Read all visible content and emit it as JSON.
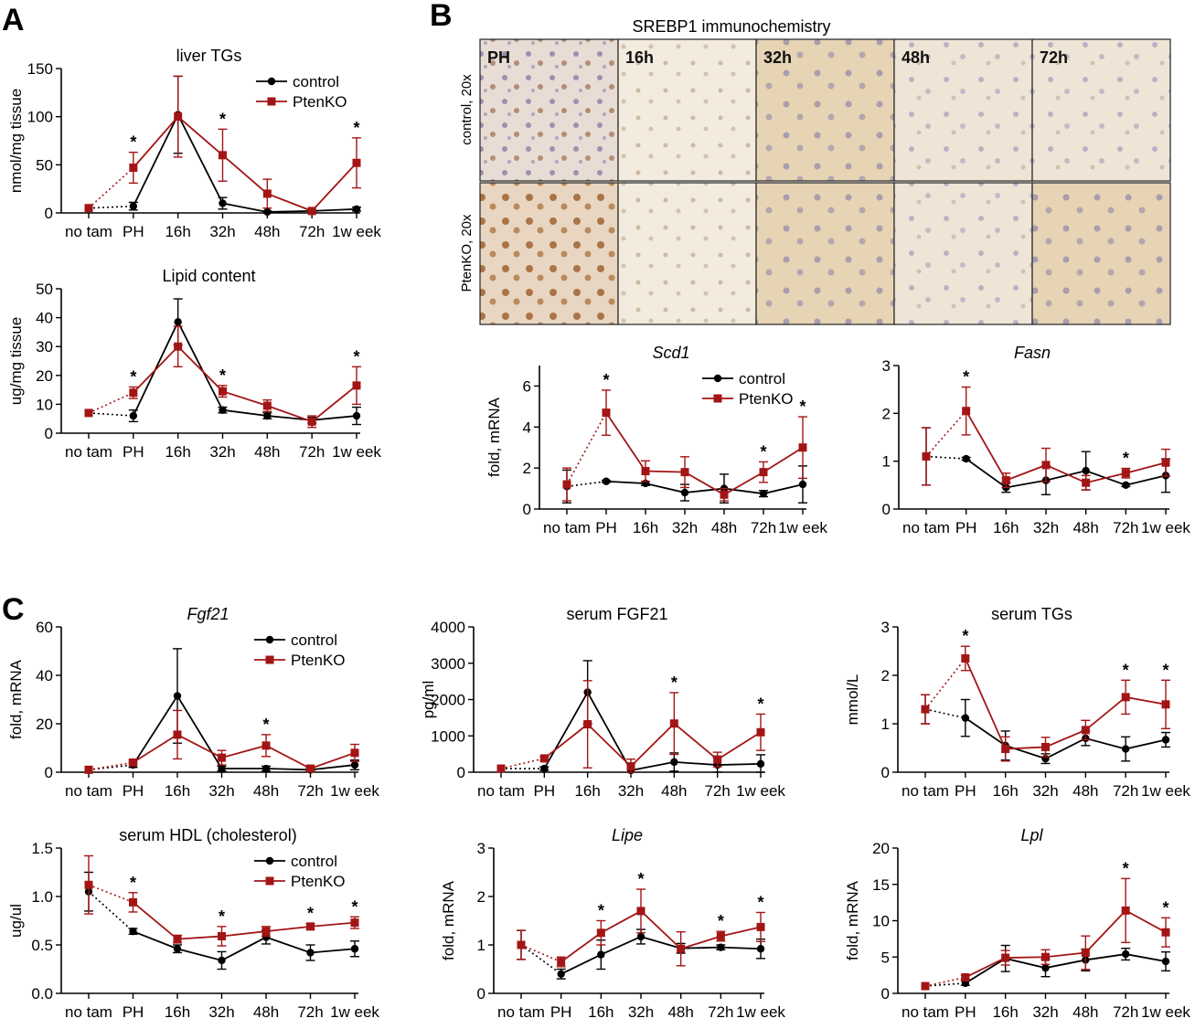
{
  "panel_letters": {
    "a": "A",
    "b": "B",
    "c": "C"
  },
  "colors": {
    "control": "#000000",
    "ptenko": "#a31515"
  },
  "legend": {
    "control": "control",
    "ptenko": "PtenKO"
  },
  "micrographs": {
    "title": "SREBP1 immunochemistry",
    "columns": [
      "PH",
      "16h",
      "32h",
      "48h",
      "72h"
    ],
    "rows": [
      "control, 20x",
      "PtenKO, 20x"
    ]
  },
  "chart_data": [
    {
      "id": "liverTG",
      "type": "line",
      "title": "liver TGs",
      "italic": false,
      "xlabel": "",
      "ylabel": "nmol/mg tissue",
      "ylim": [
        0,
        150
      ],
      "yticks": [
        0,
        50,
        100,
        150
      ],
      "categories": [
        "no tam",
        "PH",
        "16h",
        "32h",
        "48h",
        "72h",
        "1w eek"
      ],
      "legend": true,
      "stars": [
        "PH",
        "32h",
        "1w eek"
      ],
      "series": [
        {
          "name": "control",
          "values": [
            5,
            7,
            102,
            10,
            1,
            2,
            4
          ],
          "err": [
            0,
            4,
            40,
            6,
            1,
            1,
            2
          ]
        },
        {
          "name": "PtenKO",
          "values": [
            5,
            47,
            100,
            60,
            20,
            2,
            52
          ],
          "err": [
            0,
            16,
            42,
            27,
            15,
            1,
            26
          ]
        }
      ]
    },
    {
      "id": "lipid",
      "type": "line",
      "title": "Lipid content",
      "italic": false,
      "xlabel": "",
      "ylabel": "ug/mg tissue",
      "ylim": [
        0,
        50
      ],
      "yticks": [
        0,
        10,
        20,
        30,
        40,
        50
      ],
      "categories": [
        "no tam",
        "PH",
        "16h",
        "32h",
        "48h",
        "72h",
        "1w eek"
      ],
      "legend": false,
      "stars": [
        "PH",
        "32h",
        "1w eek"
      ],
      "series": [
        {
          "name": "control",
          "values": [
            7,
            6,
            38.5,
            8,
            6,
            4.5,
            6
          ],
          "err": [
            0,
            2,
            8,
            1,
            1,
            1,
            3
          ]
        },
        {
          "name": "PtenKO",
          "values": [
            7,
            14,
            30,
            14.5,
            9.5,
            4,
            16.5
          ],
          "err": [
            0,
            2,
            7,
            2,
            2,
            2,
            6.5
          ]
        }
      ]
    },
    {
      "id": "scd1",
      "type": "line",
      "title": "Scd1",
      "italic": true,
      "xlabel": "",
      "ylabel": "fold, mRNA",
      "ylim": [
        0,
        7
      ],
      "yticks": [
        0,
        2,
        4,
        6
      ],
      "categories": [
        "no tam",
        "PH",
        "16h",
        "32h",
        "48h",
        "72h",
        "1w eek"
      ],
      "legend": true,
      "stars": [
        "PH",
        "72h",
        "1w eek"
      ],
      "series": [
        {
          "name": "control",
          "values": [
            1.1,
            1.35,
            1.25,
            0.8,
            1.0,
            0.75,
            1.2
          ],
          "err": [
            0.8,
            0.05,
            0.1,
            0.4,
            0.7,
            0.15,
            0.9
          ]
        },
        {
          "name": "PtenKO",
          "values": [
            1.2,
            4.7,
            1.85,
            1.8,
            0.7,
            1.8,
            3.0
          ],
          "err": [
            0.8,
            1.1,
            0.5,
            0.75,
            0.3,
            0.5,
            1.5
          ]
        }
      ]
    },
    {
      "id": "fasn",
      "type": "line",
      "title": "Fasn",
      "italic": true,
      "xlabel": "",
      "ylabel": "",
      "ylim": [
        0,
        3
      ],
      "yticks": [
        0,
        1,
        2,
        3
      ],
      "categories": [
        "no tam",
        "PH",
        "16h",
        "32h",
        "48h",
        "72h",
        "1w eek"
      ],
      "legend": false,
      "stars": [
        "PH",
        "72h"
      ],
      "series": [
        {
          "name": "control",
          "values": [
            1.1,
            1.05,
            0.45,
            0.6,
            0.8,
            0.5,
            0.7
          ],
          "err": [
            0.6,
            0.03,
            0.1,
            0.3,
            0.4,
            0.03,
            0.35
          ]
        },
        {
          "name": "PtenKO",
          "values": [
            1.1,
            2.05,
            0.6,
            0.92,
            0.55,
            0.75,
            0.97
          ],
          "err": [
            0.6,
            0.5,
            0.15,
            0.35,
            0.15,
            0.1,
            0.28
          ]
        }
      ]
    },
    {
      "id": "fgf21",
      "type": "line",
      "title": "Fgf21",
      "italic": true,
      "xlabel": "",
      "ylabel": "fold, mRNA",
      "ylim": [
        0,
        60
      ],
      "yticks": [
        0,
        20,
        40,
        60
      ],
      "categories": [
        "no tam",
        "PH",
        "16h",
        "32h",
        "48h",
        "72h",
        "1w eek"
      ],
      "legend": true,
      "stars": [
        "48h"
      ],
      "series": [
        {
          "name": "control",
          "values": [
            1,
            3,
            31.5,
            1.5,
            1.5,
            1,
            3
          ],
          "err": [
            0,
            1,
            19.5,
            1,
            1,
            0.5,
            2
          ]
        },
        {
          "name": "PtenKO",
          "values": [
            1,
            4,
            15.5,
            6,
            11,
            1.5,
            8
          ],
          "err": [
            0,
            1,
            10,
            3,
            4.5,
            0.5,
            3.5
          ]
        }
      ]
    },
    {
      "id": "sfgf21",
      "type": "line",
      "title": "serum FGF21",
      "italic": false,
      "xlabel": "",
      "ylabel": "pg/ml",
      "ylim": [
        0,
        4000
      ],
      "yticks": [
        0,
        1000,
        2000,
        3000,
        4000
      ],
      "categories": [
        "no tam",
        "PH",
        "16h",
        "32h",
        "48h",
        "72h",
        "1w eek"
      ],
      "legend": false,
      "stars": [
        "48h",
        "1w eek"
      ],
      "series": [
        {
          "name": "control",
          "values": [
            100,
            100,
            2200,
            50,
            280,
            200,
            230
          ],
          "err": [
            0,
            50,
            870,
            200,
            250,
            200,
            250
          ]
        },
        {
          "name": "PtenKO",
          "values": [
            100,
            380,
            1320,
            160,
            1340,
            350,
            1100
          ],
          "err": [
            0,
            50,
            1200,
            200,
            850,
            200,
            500
          ]
        }
      ]
    },
    {
      "id": "stg",
      "type": "line",
      "title": "serum TGs",
      "italic": false,
      "xlabel": "",
      "ylabel": "mmol/L",
      "ylim": [
        0,
        3
      ],
      "yticks": [
        0,
        1,
        2,
        3
      ],
      "categories": [
        "no tam",
        "PH",
        "16h",
        "32h",
        "48h",
        "72h",
        "1w eek"
      ],
      "legend": false,
      "stars": [
        "PH",
        "72h",
        "1w eek"
      ],
      "series": [
        {
          "name": "control",
          "values": [
            1.3,
            1.12,
            0.55,
            0.28,
            0.7,
            0.48,
            0.67
          ],
          "err": [
            0.3,
            0.38,
            0.3,
            0.1,
            0.15,
            0.25,
            0.15
          ]
        },
        {
          "name": "PtenKO",
          "values": [
            1.3,
            2.35,
            0.48,
            0.52,
            0.87,
            1.55,
            1.4
          ],
          "err": [
            0.3,
            0.25,
            0.25,
            0.2,
            0.2,
            0.35,
            0.5
          ]
        }
      ]
    },
    {
      "id": "hdl",
      "type": "line",
      "title": "serum HDL (cholesterol)",
      "italic": false,
      "xlabel": "",
      "ylabel": "ug/ul",
      "ylim": [
        0,
        1.5
      ],
      "yticks": [
        0.0,
        0.5,
        1.0,
        1.5
      ],
      "categories": [
        "no tam",
        "PH",
        "16h",
        "32h",
        "48h",
        "72h",
        "1w eek"
      ],
      "legend": true,
      "stars": [
        "PH",
        "32h",
        "72h",
        "1w eek"
      ],
      "series": [
        {
          "name": "control",
          "values": [
            1.05,
            0.64,
            0.46,
            0.34,
            0.58,
            0.42,
            0.46
          ],
          "err": [
            0.2,
            0.03,
            0.04,
            0.09,
            0.07,
            0.08,
            0.08
          ]
        },
        {
          "name": "PtenKO",
          "values": [
            1.12,
            0.94,
            0.56,
            0.59,
            0.64,
            0.69,
            0.73
          ],
          "err": [
            0.3,
            0.1,
            0.04,
            0.1,
            0.05,
            0.03,
            0.06
          ]
        }
      ]
    },
    {
      "id": "lipe",
      "type": "line",
      "title": "Lipe",
      "italic": true,
      "xlabel": "",
      "ylabel": "fold, mRNA",
      "ylim": [
        0,
        3
      ],
      "yticks": [
        0,
        1,
        2,
        3
      ],
      "categories": [
        "no tam",
        "PH",
        "16h",
        "32h",
        "48h",
        "72h",
        "1w eek"
      ],
      "legend": false,
      "stars": [
        "16h",
        "32h",
        "72h",
        "1w eek"
      ],
      "series": [
        {
          "name": "control",
          "values": [
            1.0,
            0.4,
            0.8,
            1.17,
            0.93,
            0.95,
            0.92
          ],
          "err": [
            0.3,
            0.1,
            0.3,
            0.15,
            0.1,
            0.05,
            0.2
          ]
        },
        {
          "name": "PtenKO",
          "values": [
            1.0,
            0.65,
            1.25,
            1.7,
            0.92,
            1.18,
            1.37
          ],
          "err": [
            0.3,
            0.1,
            0.25,
            0.45,
            0.35,
            0.1,
            0.3
          ]
        }
      ]
    },
    {
      "id": "lpl",
      "type": "line",
      "title": "Lpl",
      "italic": true,
      "xlabel": "",
      "ylabel": "fold, mRNA",
      "ylim": [
        0,
        20
      ],
      "yticks": [
        0,
        5,
        10,
        15,
        20
      ],
      "categories": [
        "no tam",
        "PH",
        "16h",
        "32h",
        "48h",
        "72h",
        "1w eek"
      ],
      "legend": false,
      "stars": [
        "72h",
        "1w eek"
      ],
      "series": [
        {
          "name": "control",
          "values": [
            1,
            1.4,
            4.8,
            3.5,
            4.6,
            5.4,
            4.4
          ],
          "err": [
            0,
            0.3,
            1.8,
            1.2,
            1.5,
            0.8,
            1.3
          ]
        },
        {
          "name": "PtenKO",
          "values": [
            1,
            2.2,
            4.9,
            5.0,
            5.6,
            11.4,
            8.4
          ],
          "err": [
            0,
            0.3,
            1.0,
            1.0,
            2.3,
            4.4,
            2.0
          ]
        }
      ]
    }
  ]
}
